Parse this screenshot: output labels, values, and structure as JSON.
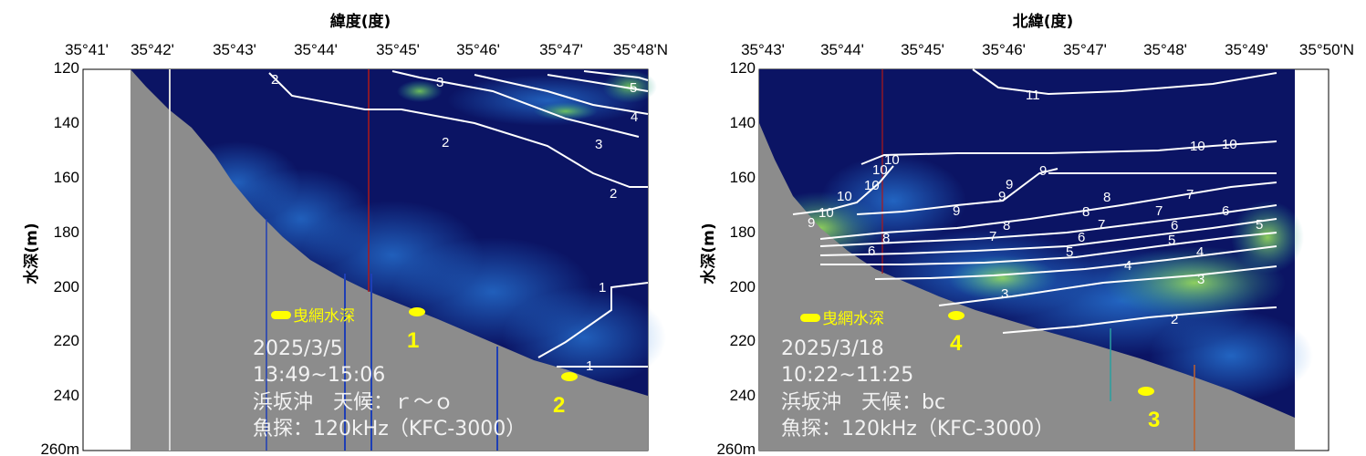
{
  "chart_data": [
    {
      "type": "echogram",
      "x_label": "緯度(度)",
      "y_label": "水深(m)",
      "x_ticks": [
        "35°41'",
        "35°42'",
        "35°43'",
        "35°44'",
        "35°45'",
        "35°46'",
        "35°47'",
        "35°48'N"
      ],
      "y_ticks": [
        "120",
        "140",
        "160",
        "180",
        "200",
        "220",
        "240",
        "260m"
      ],
      "ylim": [
        120,
        260
      ],
      "contour_labels": [
        "2",
        "2",
        "3",
        "3",
        "4",
        "5",
        "2",
        "1",
        "1"
      ],
      "legend_label": "曳網水深",
      "info_lines": [
        "2025/3/5",
        "13:49~15:06",
        "浜坂沖　天候：ｒ～ｏ",
        "魚探：120kHz（KFC-3000）"
      ],
      "haul_markers": [
        {
          "label": "1"
        },
        {
          "label": "2"
        }
      ],
      "colors": {
        "seabed": "#8c8c8c",
        "water": "#0b1464",
        "contour": "#ffffff",
        "marker": "#ffff00"
      }
    },
    {
      "type": "echogram",
      "x_label": "北緯(度)",
      "y_label": "水深(m)",
      "x_ticks": [
        "35°43'",
        "35°44'",
        "35°45'",
        "35°46'",
        "35°47'",
        "35°48'",
        "35°49'",
        "35°50'N"
      ],
      "y_ticks": [
        "120",
        "140",
        "160",
        "180",
        "200",
        "220",
        "240",
        "260m"
      ],
      "ylim": [
        120,
        260
      ],
      "contour_labels": [
        "11",
        "10",
        "10",
        "10",
        "10",
        "10",
        "10",
        "9",
        "9",
        "9",
        "9",
        "9",
        "10",
        "8",
        "8",
        "8",
        "8",
        "7",
        "7",
        "7",
        "7",
        "6",
        "6",
        "6",
        "6",
        "5",
        "5",
        "5",
        "4",
        "4",
        "3",
        "3",
        "2"
      ],
      "legend_label": "曳網水深",
      "info_lines": [
        "2025/3/18",
        "10:22~11:25",
        "浜坂沖　天候：bc",
        "魚探：120kHz（KFC-3000）"
      ],
      "haul_markers": [
        {
          "label": "4"
        },
        {
          "label": "3"
        }
      ],
      "colors": {
        "seabed": "#8c8c8c",
        "water": "#0b1464",
        "contour": "#ffffff",
        "marker": "#ffff00"
      }
    }
  ]
}
